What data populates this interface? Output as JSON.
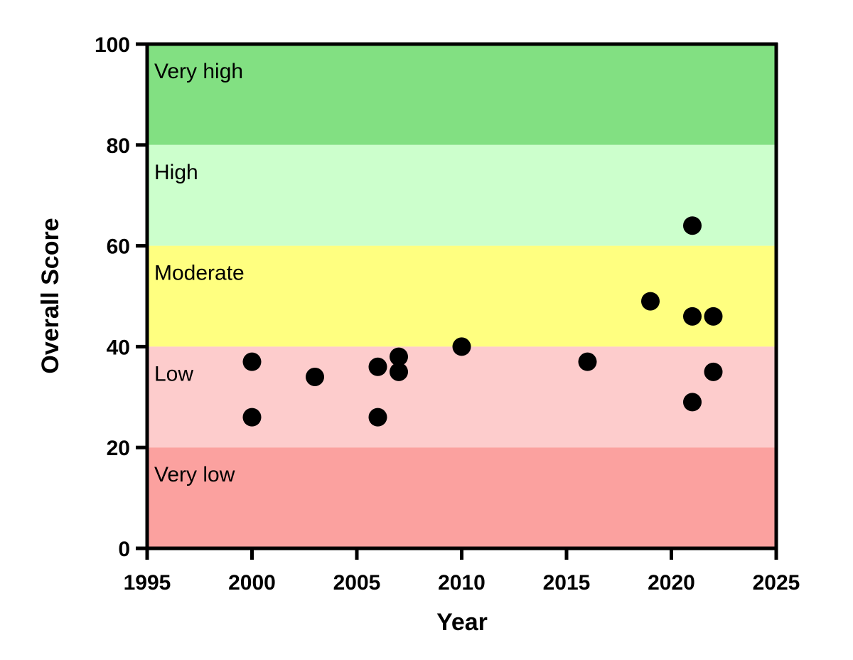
{
  "chart_data": {
    "type": "scatter",
    "title": "",
    "xlabel": "Year",
    "ylabel": "Overall Score",
    "xlim": [
      1995,
      2025
    ],
    "ylim": [
      0,
      100
    ],
    "xticks": [
      1995,
      2000,
      2005,
      2010,
      2015,
      2020,
      2025
    ],
    "yticks": [
      0,
      20,
      40,
      60,
      80,
      100
    ],
    "grid": false,
    "bands": [
      {
        "label": "Very high",
        "from": 80,
        "to": 100,
        "color": "#82e082"
      },
      {
        "label": "High",
        "from": 60,
        "to": 80,
        "color": "#ccffcc"
      },
      {
        "label": "Moderate",
        "from": 40,
        "to": 60,
        "color": "#ffff80"
      },
      {
        "label": "Low",
        "from": 20,
        "to": 40,
        "color": "#fdcccc"
      },
      {
        "label": "Very low",
        "from": 0,
        "to": 20,
        "color": "#fba19f"
      }
    ],
    "marker_color": "#000000",
    "points": [
      {
        "x": 2000,
        "y": 37
      },
      {
        "x": 2000,
        "y": 26
      },
      {
        "x": 2003,
        "y": 34
      },
      {
        "x": 2006,
        "y": 36
      },
      {
        "x": 2006,
        "y": 26
      },
      {
        "x": 2007,
        "y": 38
      },
      {
        "x": 2007,
        "y": 35
      },
      {
        "x": 2010,
        "y": 40
      },
      {
        "x": 2016,
        "y": 37
      },
      {
        "x": 2019,
        "y": 49
      },
      {
        "x": 2021,
        "y": 64
      },
      {
        "x": 2021,
        "y": 46
      },
      {
        "x": 2021,
        "y": 29
      },
      {
        "x": 2022,
        "y": 46
      },
      {
        "x": 2022,
        "y": 35
      }
    ]
  }
}
